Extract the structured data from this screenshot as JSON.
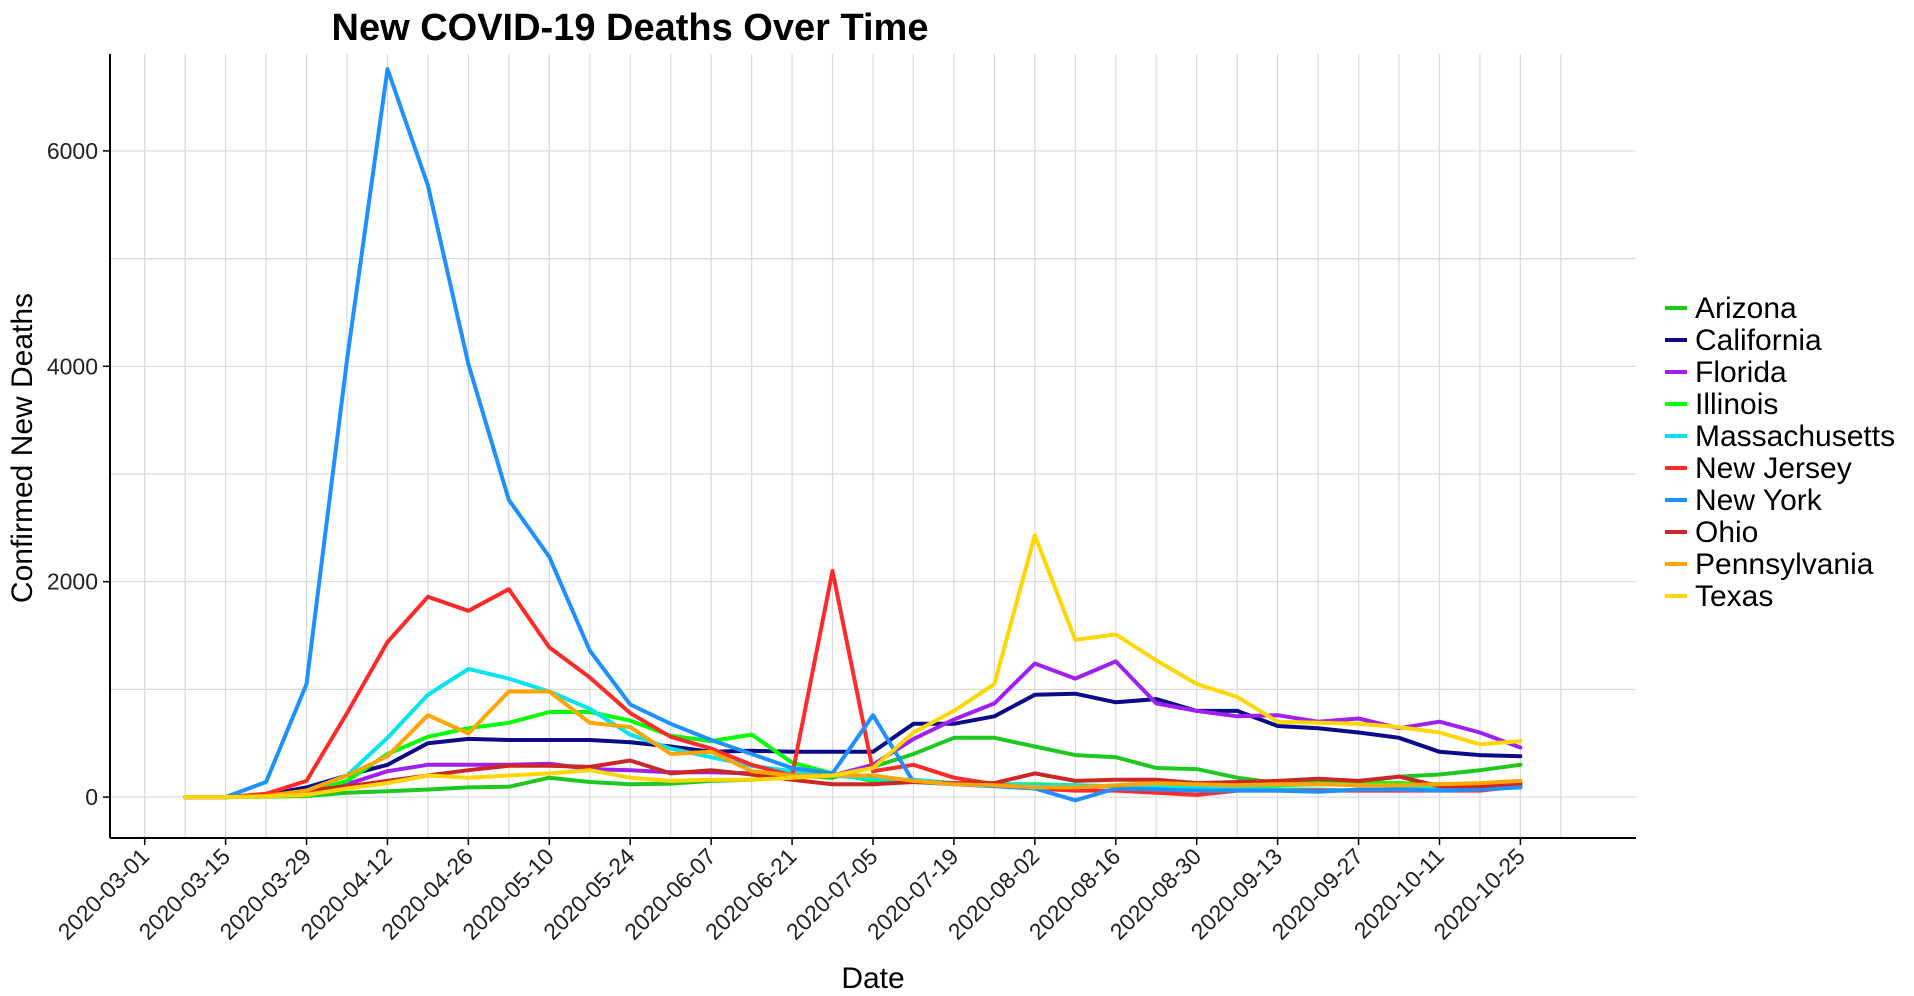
{
  "chart_data": {
    "type": "line",
    "title": "New COVID-19 Deaths Over Time",
    "xlabel": "Date",
    "ylabel": "Confirmed New Deaths",
    "ylim": [
      -380,
      6900
    ],
    "yticks": [
      0,
      2000,
      4000,
      6000
    ],
    "xlim": [
      "2020-02-24",
      "2020-11-14"
    ],
    "xticks": [
      "2020-03-01",
      "2020-03-15",
      "2020-03-29",
      "2020-04-12",
      "2020-04-26",
      "2020-05-10",
      "2020-05-24",
      "2020-06-07",
      "2020-06-21",
      "2020-07-05",
      "2020-07-19",
      "2020-08-02",
      "2020-08-16",
      "2020-08-30",
      "2020-09-13",
      "2020-09-27",
      "2020-10-11",
      "2020-10-25"
    ],
    "grid": true,
    "legend_position": "right",
    "x": [
      "2020-03-08",
      "2020-03-15",
      "2020-03-22",
      "2020-03-29",
      "2020-04-05",
      "2020-04-12",
      "2020-04-19",
      "2020-04-26",
      "2020-05-03",
      "2020-05-10",
      "2020-05-17",
      "2020-05-24",
      "2020-05-31",
      "2020-06-07",
      "2020-06-14",
      "2020-06-21",
      "2020-06-28",
      "2020-07-05",
      "2020-07-12",
      "2020-07-19",
      "2020-07-26",
      "2020-08-02",
      "2020-08-09",
      "2020-08-16",
      "2020-08-23",
      "2020-08-30",
      "2020-09-06",
      "2020-09-13",
      "2020-09-20",
      "2020-09-27",
      "2020-10-04",
      "2020-10-11",
      "2020-10-18",
      "2020-10-25"
    ],
    "series": [
      {
        "name": "Arizona",
        "color": "#1ec81e",
        "values": [
          0,
          0,
          3,
          10,
          40,
          55,
          70,
          90,
          95,
          180,
          140,
          120,
          125,
          150,
          160,
          200,
          180,
          280,
          400,
          550,
          550,
          470,
          390,
          370,
          270,
          260,
          180,
          130,
          140,
          140,
          190,
          210,
          250,
          300
        ]
      },
      {
        "name": "California",
        "color": "#0b0b8a",
        "values": [
          0,
          0,
          20,
          90,
          200,
          300,
          500,
          540,
          530,
          530,
          530,
          510,
          470,
          420,
          430,
          420,
          420,
          420,
          680,
          680,
          750,
          950,
          960,
          880,
          910,
          800,
          800,
          660,
          640,
          600,
          550,
          420,
          390,
          380
        ]
      },
      {
        "name": "Florida",
        "color": "#a020f0",
        "values": [
          0,
          0,
          10,
          30,
          120,
          240,
          300,
          300,
          300,
          310,
          260,
          250,
          230,
          230,
          220,
          200,
          200,
          300,
          540,
          720,
          870,
          1240,
          1100,
          1260,
          870,
          800,
          750,
          760,
          700,
          730,
          640,
          700,
          600,
          460
        ]
      },
      {
        "name": "Illinois",
        "color": "#00ff00",
        "values": [
          0,
          0,
          5,
          40,
          150,
          400,
          560,
          640,
          690,
          790,
          790,
          710,
          570,
          520,
          580,
          320,
          220,
          150,
          140,
          130,
          120,
          120,
          110,
          100,
          90,
          100,
          100,
          110,
          120,
          130,
          130,
          120,
          120,
          120
        ]
      },
      {
        "name": "Massachusetts",
        "color": "#00e5ee",
        "values": [
          0,
          0,
          10,
          60,
          200,
          550,
          950,
          1190,
          1100,
          980,
          820,
          580,
          450,
          370,
          290,
          240,
          200,
          170,
          160,
          130,
          120,
          110,
          110,
          100,
          90,
          80,
          80,
          70,
          70,
          60,
          80,
          80,
          90,
          100
        ]
      },
      {
        "name": "New Jersey",
        "color": "#ff2a2a",
        "values": [
          0,
          0,
          30,
          150,
          780,
          1440,
          1860,
          1730,
          1930,
          1390,
          1110,
          780,
          560,
          450,
          300,
          200,
          2100,
          240,
          300,
          180,
          120,
          80,
          60,
          60,
          40,
          20,
          60,
          60,
          60,
          60,
          60,
          60,
          60,
          100
        ]
      },
      {
        "name": "New York",
        "color": "#1e90ff",
        "values": [
          0,
          0,
          140,
          1050,
          4060,
          6760,
          5680,
          4020,
          2760,
          2230,
          1360,
          860,
          680,
          530,
          400,
          270,
          220,
          760,
          140,
          120,
          100,
          80,
          -30,
          80,
          70,
          60,
          60,
          60,
          50,
          70,
          70,
          60,
          70,
          90
        ]
      },
      {
        "name": "Ohio",
        "color": "#cd2626",
        "values": [
          0,
          0,
          10,
          60,
          100,
          150,
          200,
          250,
          290,
          290,
          280,
          340,
          220,
          250,
          210,
          160,
          120,
          120,
          140,
          130,
          130,
          220,
          150,
          160,
          160,
          130,
          140,
          150,
          170,
          150,
          190,
          100,
          100,
          130
        ]
      },
      {
        "name": "Pennsylvania",
        "color": "#ffa500",
        "values": [
          0,
          0,
          10,
          60,
          200,
          380,
          760,
          590,
          980,
          980,
          690,
          650,
          400,
          420,
          240,
          200,
          200,
          200,
          150,
          120,
          110,
          90,
          90,
          110,
          130,
          120,
          110,
          120,
          120,
          110,
          110,
          120,
          130,
          150
        ]
      },
      {
        "name": "Texas",
        "color": "#ffd700",
        "values": [
          0,
          0,
          5,
          20,
          80,
          130,
          200,
          180,
          200,
          220,
          250,
          180,
          150,
          160,
          160,
          180,
          200,
          270,
          600,
          800,
          1050,
          2430,
          1460,
          1510,
          1270,
          1050,
          930,
          700,
          690,
          680,
          650,
          600,
          490,
          520
        ]
      }
    ]
  }
}
